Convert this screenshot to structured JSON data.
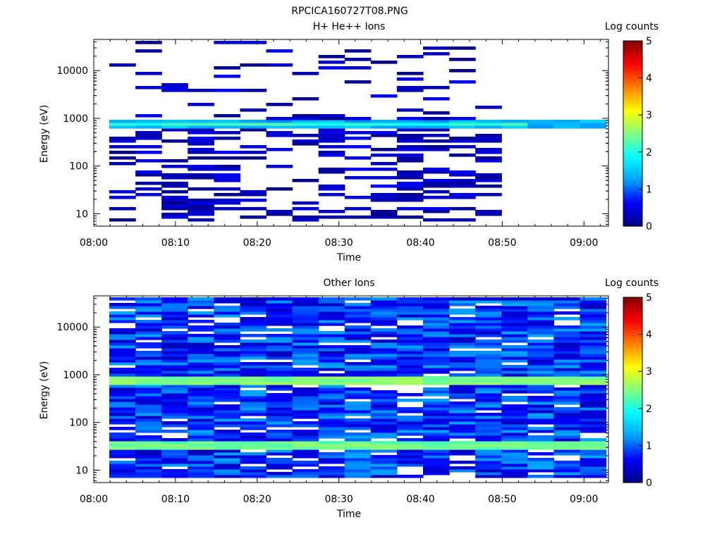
{
  "figure_title": "RPCICA160727T08.PNG",
  "colormap": [
    "#000080",
    "#0000ff",
    "#00a0ff",
    "#00ffff",
    "#80ff80",
    "#ffff00",
    "#ff8000",
    "#ff0000",
    "#800000"
  ],
  "chart_data": [
    {
      "type": "heatmap",
      "title": "H+ He++ Ions",
      "xlabel": "Time",
      "ylabel": "Energy (eV)",
      "x_ticks": [
        "08:00",
        "08:10",
        "08:20",
        "08:30",
        "08:40",
        "08:50",
        "09:00"
      ],
      "x_range_minutes": [
        0,
        63
      ],
      "y_scale": "log",
      "y_range": [
        5.5,
        45000
      ],
      "y_ticks": [
        "10",
        "100",
        "1000",
        "10000"
      ],
      "colorbar": {
        "label": "Log counts",
        "range": [
          0,
          5
        ],
        "ticks": [
          "0",
          "1",
          "2",
          "3",
          "4",
          "5"
        ]
      },
      "time_bin_minutes": 3.2,
      "data_start_minutes": 1.9,
      "data_bins": 19,
      "bands": [
        {
          "emin": 650,
          "emax": 900,
          "level": 1.4,
          "from_minutes": 1.9,
          "to_minutes": 63
        },
        {
          "emin": 700,
          "emax": 780,
          "level": 2.1,
          "from_minutes": 1.9,
          "to_minutes": 50
        }
      ],
      "coverage": {
        "sparse_from_minutes": 1.9,
        "sparse_to_minutes": 50,
        "density": 0.38,
        "level_range": [
          0.0,
          0.6
        ]
      }
    },
    {
      "type": "heatmap",
      "title": "Other Ions",
      "xlabel": "Time",
      "ylabel": "Energy (eV)",
      "x_ticks": [
        "08:00",
        "08:10",
        "08:20",
        "08:30",
        "08:40",
        "08:50",
        "09:00"
      ],
      "x_range_minutes": [
        0,
        63
      ],
      "y_scale": "log",
      "y_range": [
        5.5,
        45000
      ],
      "y_ticks": [
        "10",
        "100",
        "1000",
        "10000"
      ],
      "colorbar": {
        "label": "Log counts",
        "range": [
          0,
          5
        ],
        "ticks": [
          "0",
          "1",
          "2",
          "3",
          "4",
          "5"
        ]
      },
      "time_bin_minutes": 3.2,
      "data_start_minutes": 1.9,
      "data_bins": 19,
      "bands": [
        {
          "emin": 600,
          "emax": 900,
          "level": 2.5,
          "from_minutes": 1.9,
          "to_minutes": 63
        },
        {
          "emin": 28,
          "emax": 42,
          "level": 2.4,
          "from_minutes": 1.9,
          "to_minutes": 63
        }
      ],
      "coverage": {
        "sparse_from_minutes": 1.9,
        "sparse_to_minutes": 63,
        "density": 0.9,
        "level_range": [
          0.3,
          1.3
        ]
      }
    }
  ]
}
